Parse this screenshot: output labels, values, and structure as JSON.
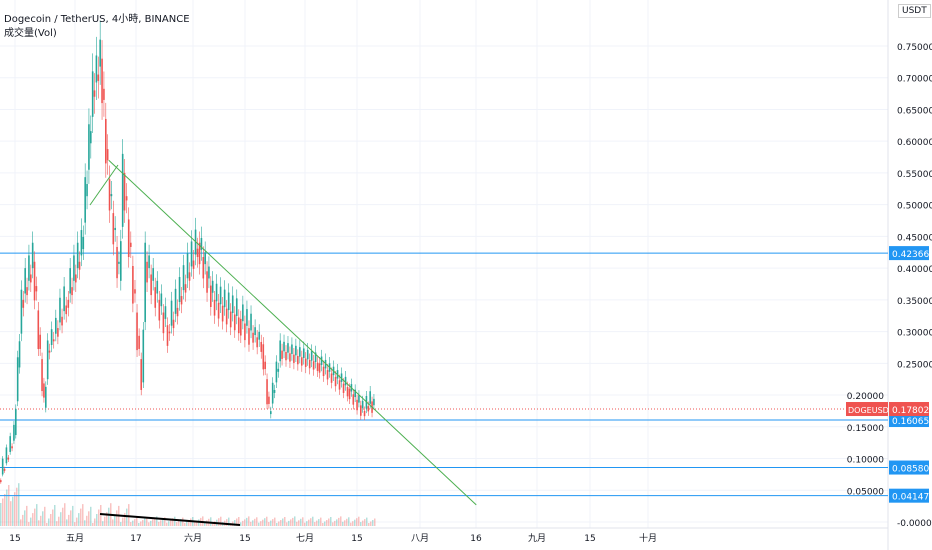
{
  "header": {
    "title": "Dogecoin / TetherUS, 4小時, BINANCE",
    "indicator": "成交量(Vol)",
    "currency": "USDT"
  },
  "colors": {
    "up": "#26a69a",
    "down": "#ef5350",
    "level": "#2196f3",
    "trend": "#4caf50",
    "volume_trend": "#000000"
  },
  "chart_data": {
    "type": "line",
    "title": "Dogecoin / TetherUS, 4小時, BINANCE",
    "ylim": [
      0,
      0.75
    ],
    "y_ticks": [
      "0.75000",
      "0.70000",
      "0.65000",
      "0.60000",
      "0.55000",
      "0.50000",
      "0.45000",
      "0.40000",
      "0.35000",
      "0.30000",
      "0.25000",
      "0.20000",
      "0.15000",
      "0.10000",
      "0.05000",
      "-0.00000"
    ],
    "x_ticks": [
      "15",
      "五月",
      "17",
      "六月",
      "15",
      "七月",
      "15",
      "八月",
      "16",
      "九月",
      "15",
      "十月"
    ],
    "series": [
      {
        "points": [
          [
            "04-11",
            0.066
          ],
          [
            "04-15",
            0.137
          ],
          [
            "04-17",
            0.35
          ],
          [
            "04-20",
            0.41
          ],
          [
            "04-23",
            0.18
          ],
          [
            "04-24",
            0.27
          ],
          [
            "04-29",
            0.35
          ],
          [
            "05-03",
            0.43
          ],
          [
            "05-06",
            0.68
          ],
          [
            "05-08",
            0.73
          ],
          [
            "05-10",
            0.54
          ],
          [
            "05-13",
            0.38
          ],
          [
            "05-14",
            0.55
          ],
          [
            "05-19",
            0.22
          ],
          [
            "05-20",
            0.41
          ],
          [
            "05-26",
            0.3
          ],
          [
            "06-03",
            0.44
          ],
          [
            "06-07",
            0.35
          ],
          [
            "06-14",
            0.32
          ],
          [
            "06-20",
            0.28
          ],
          [
            "06-22",
            0.17
          ],
          [
            "06-25",
            0.27
          ],
          [
            "07-05",
            0.25
          ],
          [
            "07-13",
            0.21
          ],
          [
            "07-17",
            0.175
          ],
          [
            "07-19",
            0.19
          ],
          [
            "07-20",
            0.178
          ]
        ]
      }
    ],
    "levels": [
      {
        "value": "0.42366"
      },
      {
        "value": "0.16065"
      },
      {
        "value": "0.08580"
      },
      {
        "value": "0.04147"
      }
    ],
    "last_price": {
      "symbol": "DOGEUSDT",
      "value": "0.17802"
    },
    "trendline": {
      "from": [
        "05-10",
        0.57
      ],
      "to": [
        "08-16",
        0.027
      ]
    }
  }
}
